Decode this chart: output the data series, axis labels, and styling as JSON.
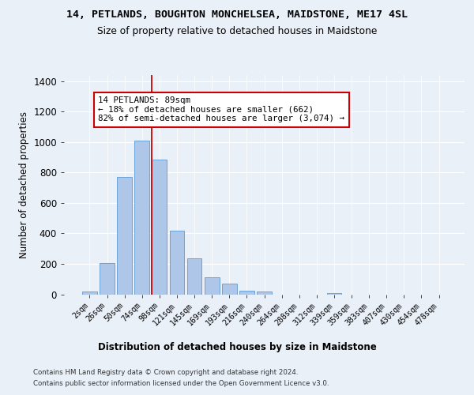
{
  "title_line1": "14, PETLANDS, BOUGHTON MONCHELSEA, MAIDSTONE, ME17 4SL",
  "title_line2": "Size of property relative to detached houses in Maidstone",
  "xlabel": "Distribution of detached houses by size in Maidstone",
  "ylabel": "Number of detached properties",
  "categories": [
    "2sqm",
    "26sqm",
    "50sqm",
    "74sqm",
    "98sqm",
    "121sqm",
    "145sqm",
    "169sqm",
    "193sqm",
    "216sqm",
    "240sqm",
    "264sqm",
    "288sqm",
    "312sqm",
    "339sqm",
    "359sqm",
    "383sqm",
    "407sqm",
    "430sqm",
    "454sqm",
    "478sqm"
  ],
  "values": [
    20,
    205,
    770,
    1010,
    885,
    420,
    235,
    110,
    70,
    25,
    20,
    0,
    0,
    0,
    10,
    0,
    0,
    0,
    0,
    0,
    0
  ],
  "bar_color": "#aec6e8",
  "bar_edge_color": "#5b9bd5",
  "red_line_x": 3.57,
  "annotation_text": "14 PETLANDS: 89sqm\n← 18% of detached houses are smaller (662)\n82% of semi-detached houses are larger (3,074) →",
  "annotation_box_color": "#ffffff",
  "annotation_box_edge": "#cc0000",
  "annotation_text_color": "#000000",
  "red_line_color": "#cc0000",
  "ylim": [
    0,
    1440
  ],
  "yticks": [
    0,
    200,
    400,
    600,
    800,
    1000,
    1200,
    1400
  ],
  "footer_line1": "Contains HM Land Registry data © Crown copyright and database right 2024.",
  "footer_line2": "Contains public sector information licensed under the Open Government Licence v3.0.",
  "bg_color": "#eaf0f8",
  "plot_bg_color": "#eaf0f8"
}
